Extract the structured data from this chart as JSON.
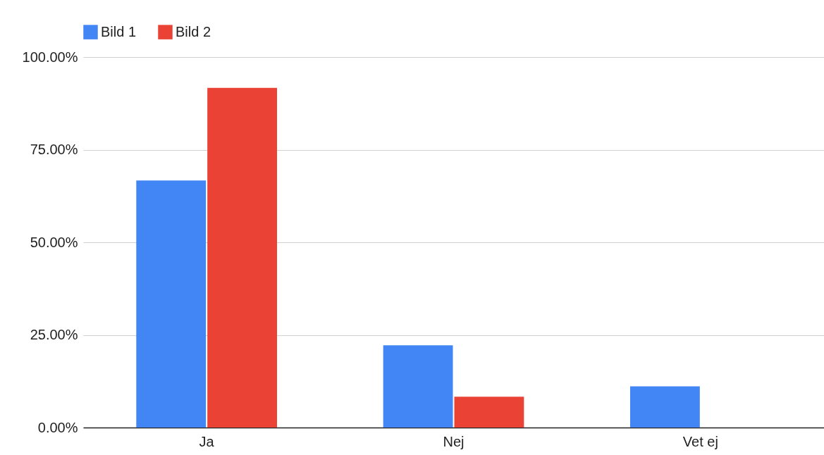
{
  "chart_data": {
    "type": "bar",
    "categories": [
      "Ja",
      "Nej",
      "Vet ej"
    ],
    "series": [
      {
        "name": "Bild 1",
        "color": "#4285f4",
        "values": [
          66.7,
          22.2,
          11.1
        ]
      },
      {
        "name": "Bild 2",
        "color": "#ea4335",
        "values": [
          91.7,
          8.3,
          0
        ]
      }
    ],
    "ylim": [
      0,
      100
    ],
    "yticks": [
      {
        "value": 0,
        "label": "0.00%"
      },
      {
        "value": 25,
        "label": "25.00%"
      },
      {
        "value": 50,
        "label": "50.00%"
      },
      {
        "value": 75,
        "label": "75.00%"
      },
      {
        "value": 100,
        "label": "100.00%"
      }
    ],
    "grid": "y",
    "legend": "top"
  }
}
